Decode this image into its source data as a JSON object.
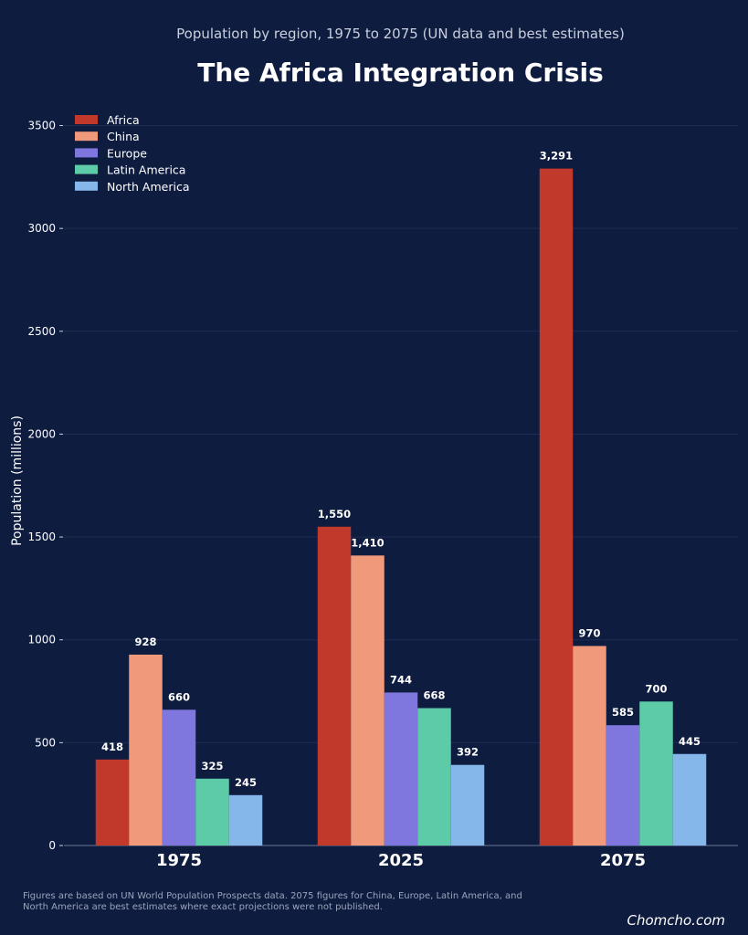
{
  "chart_data": {
    "type": "bar",
    "subtitle": "Population by region, 1975 to 2075 (UN data and best estimates)",
    "title": "The Africa Integration Crisis",
    "ylabel": "Population (millions)",
    "xlabel": "",
    "categories": [
      "1975",
      "2025",
      "2075"
    ],
    "ylim": [
      0,
      3600
    ],
    "yticks": [
      0,
      500,
      1000,
      1500,
      2000,
      2500,
      3000,
      3500
    ],
    "grid": true,
    "legend": "top-left",
    "series": [
      {
        "name": "Africa",
        "color": "#c0392b",
        "values": [
          418,
          1550,
          3291
        ],
        "labels": [
          "418",
          "1,550",
          "3,291"
        ]
      },
      {
        "name": "China",
        "color": "#f19a7b",
        "values": [
          928,
          1410,
          970
        ],
        "labels": [
          "928",
          "1,410",
          "970"
        ]
      },
      {
        "name": "Europe",
        "color": "#7f77dd",
        "values": [
          660,
          744,
          585
        ],
        "labels": [
          "660",
          "744",
          "585"
        ]
      },
      {
        "name": "Latin America",
        "color": "#5ecba8",
        "values": [
          325,
          668,
          700
        ],
        "labels": [
          "325",
          "668",
          "700"
        ]
      },
      {
        "name": "North America",
        "color": "#85b7eb",
        "values": [
          245,
          392,
          445
        ],
        "labels": [
          "245",
          "392",
          "445"
        ]
      }
    ]
  },
  "footnote": "Figures are based on UN World Population Prospects data. 2075 figures for China, Europe, Latin America, and North America are best estimates where exact projections were not published.",
  "brand": "Chomcho.com"
}
